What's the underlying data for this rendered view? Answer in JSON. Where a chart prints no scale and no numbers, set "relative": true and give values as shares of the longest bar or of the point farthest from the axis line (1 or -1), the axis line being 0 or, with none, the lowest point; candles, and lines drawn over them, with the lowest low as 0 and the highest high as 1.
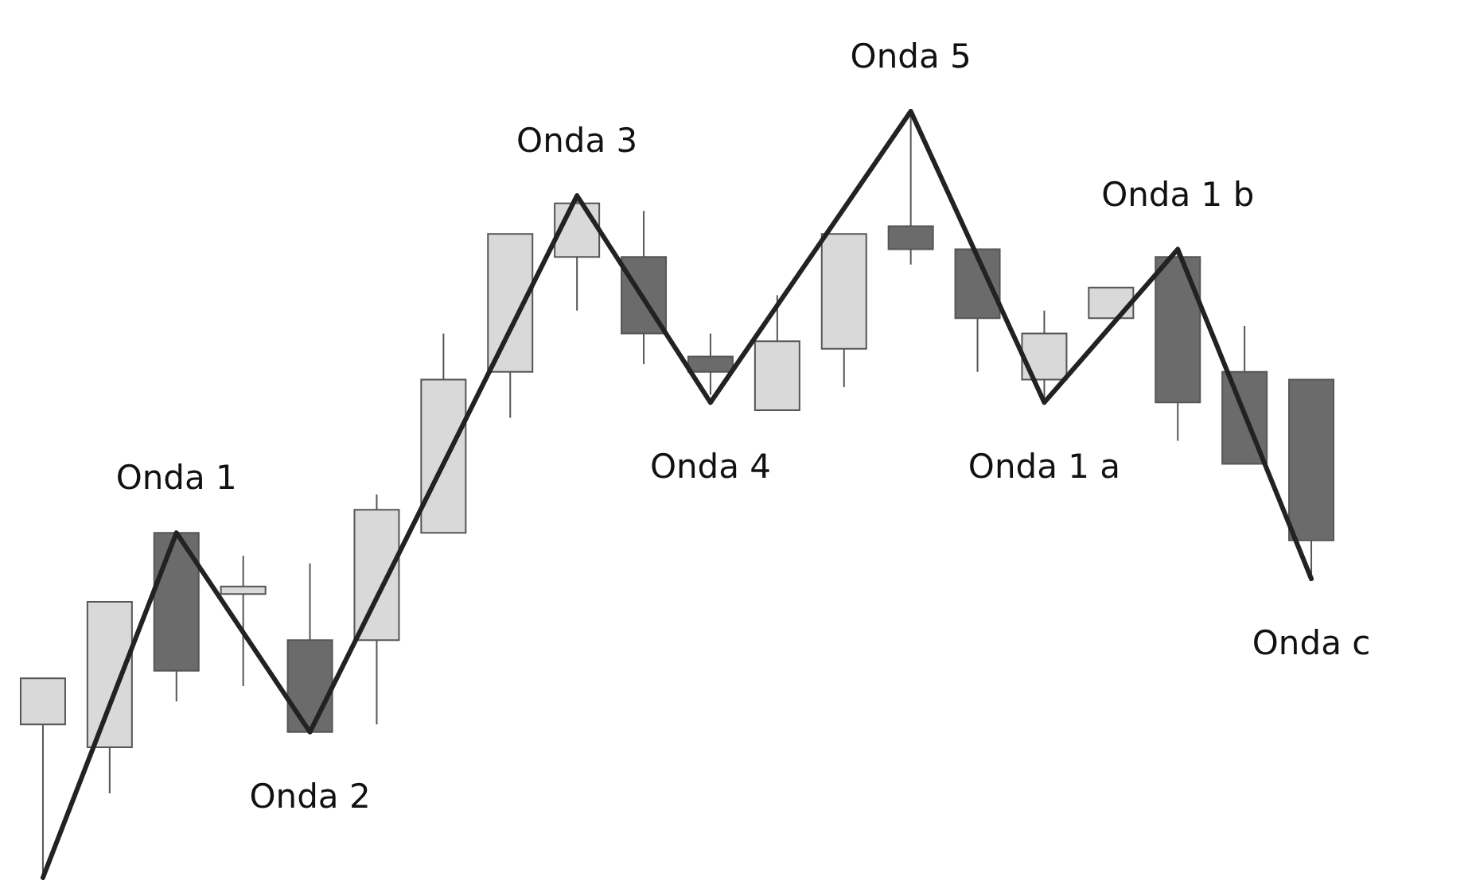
{
  "chart_data": [
    {
      "type": "candlestick",
      "relative": true,
      "categories": [
        null,
        null,
        null,
        null,
        null,
        null,
        null,
        null,
        null,
        null,
        null,
        null,
        null,
        null,
        null,
        null,
        null,
        null,
        null,
        null
      ],
      "ohlc": [
        [
          0.2,
          0.26,
          0,
          0.26
        ],
        [
          0.17,
          0.36,
          0.11,
          0.36
        ],
        [
          0.45,
          0.45,
          0.23,
          0.27
        ],
        [
          0.37,
          0.42,
          0.25,
          0.38
        ],
        [
          0.31,
          0.41,
          0.19,
          0.19
        ],
        [
          0.31,
          0.5,
          0.2,
          0.48
        ],
        [
          0.45,
          0.71,
          0.45,
          0.65
        ],
        [
          0.66,
          0.84,
          0.6,
          0.84
        ],
        [
          0.81,
          0.89,
          0.74,
          0.88
        ],
        [
          0.81,
          0.87,
          0.67,
          0.71
        ],
        [
          0.68,
          0.71,
          0.63,
          0.66
        ],
        [
          0.61,
          0.76,
          0.61,
          0.7
        ],
        [
          0.69,
          0.84,
          0.64,
          0.84
        ],
        [
          0.85,
          1,
          0.8,
          0.82
        ],
        [
          0.82,
          0.82,
          0.66,
          0.73
        ],
        [
          0.65,
          0.74,
          0.62,
          0.71
        ],
        [
          0.73,
          0.77,
          0.73,
          0.77
        ],
        [
          0.81,
          0.82,
          0.57,
          0.62
        ],
        [
          0.66,
          0.72,
          0.54,
          0.54
        ],
        [
          0.65,
          0.65,
          0.39,
          0.44
        ]
      ],
      "colors": [
        "#d9d9d9",
        "#d9d9d9",
        "#6b6b6b",
        "#d9d9d9",
        "#6b6b6b",
        "#d9d9d9",
        "#d9d9d9",
        "#d9d9d9",
        "#d9d9d9",
        "#6b6b6b",
        "#6b6b6b",
        "#d9d9d9",
        "#d9d9d9",
        "#6b6b6b",
        "#6b6b6b",
        "#d9d9d9",
        "#d9d9d9",
        "#6b6b6b",
        "#6b6b6b",
        "#6b6b6b"
      ]
    },
    {
      "type": "line",
      "relative": true,
      "marker": "none",
      "line_style": "solid",
      "categories": [
        null,
        null,
        null,
        null,
        null,
        null,
        null,
        null,
        null,
        null,
        null,
        null,
        null,
        null,
        null,
        null,
        null,
        null,
        null,
        null
      ],
      "series": [
        {
          "color": "#222222",
          "values": [
            0,
            null,
            0.45,
            null,
            0.19,
            null,
            null,
            null,
            0.89,
            null,
            0.62,
            null,
            null,
            1,
            null,
            0.62,
            null,
            0.82,
            null,
            0.39
          ]
        }
      ],
      "annotations": [
        "Onda 1",
        "Onda 2",
        "Onda 3",
        "Onda 4",
        "Onda 5",
        "Onda 1 a",
        "Onda 1 b",
        "Onda c"
      ]
    }
  ]
}
